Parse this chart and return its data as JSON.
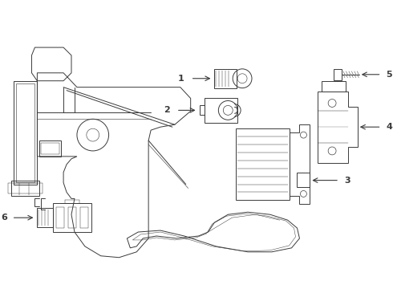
{
  "bg_color": "#ffffff",
  "line_color": "#3a3a3a",
  "lw": 0.7,
  "fig_width": 4.9,
  "fig_height": 3.6,
  "dpi": 100,
  "xlim": [
    0,
    490
  ],
  "ylim": [
    0,
    360
  ]
}
